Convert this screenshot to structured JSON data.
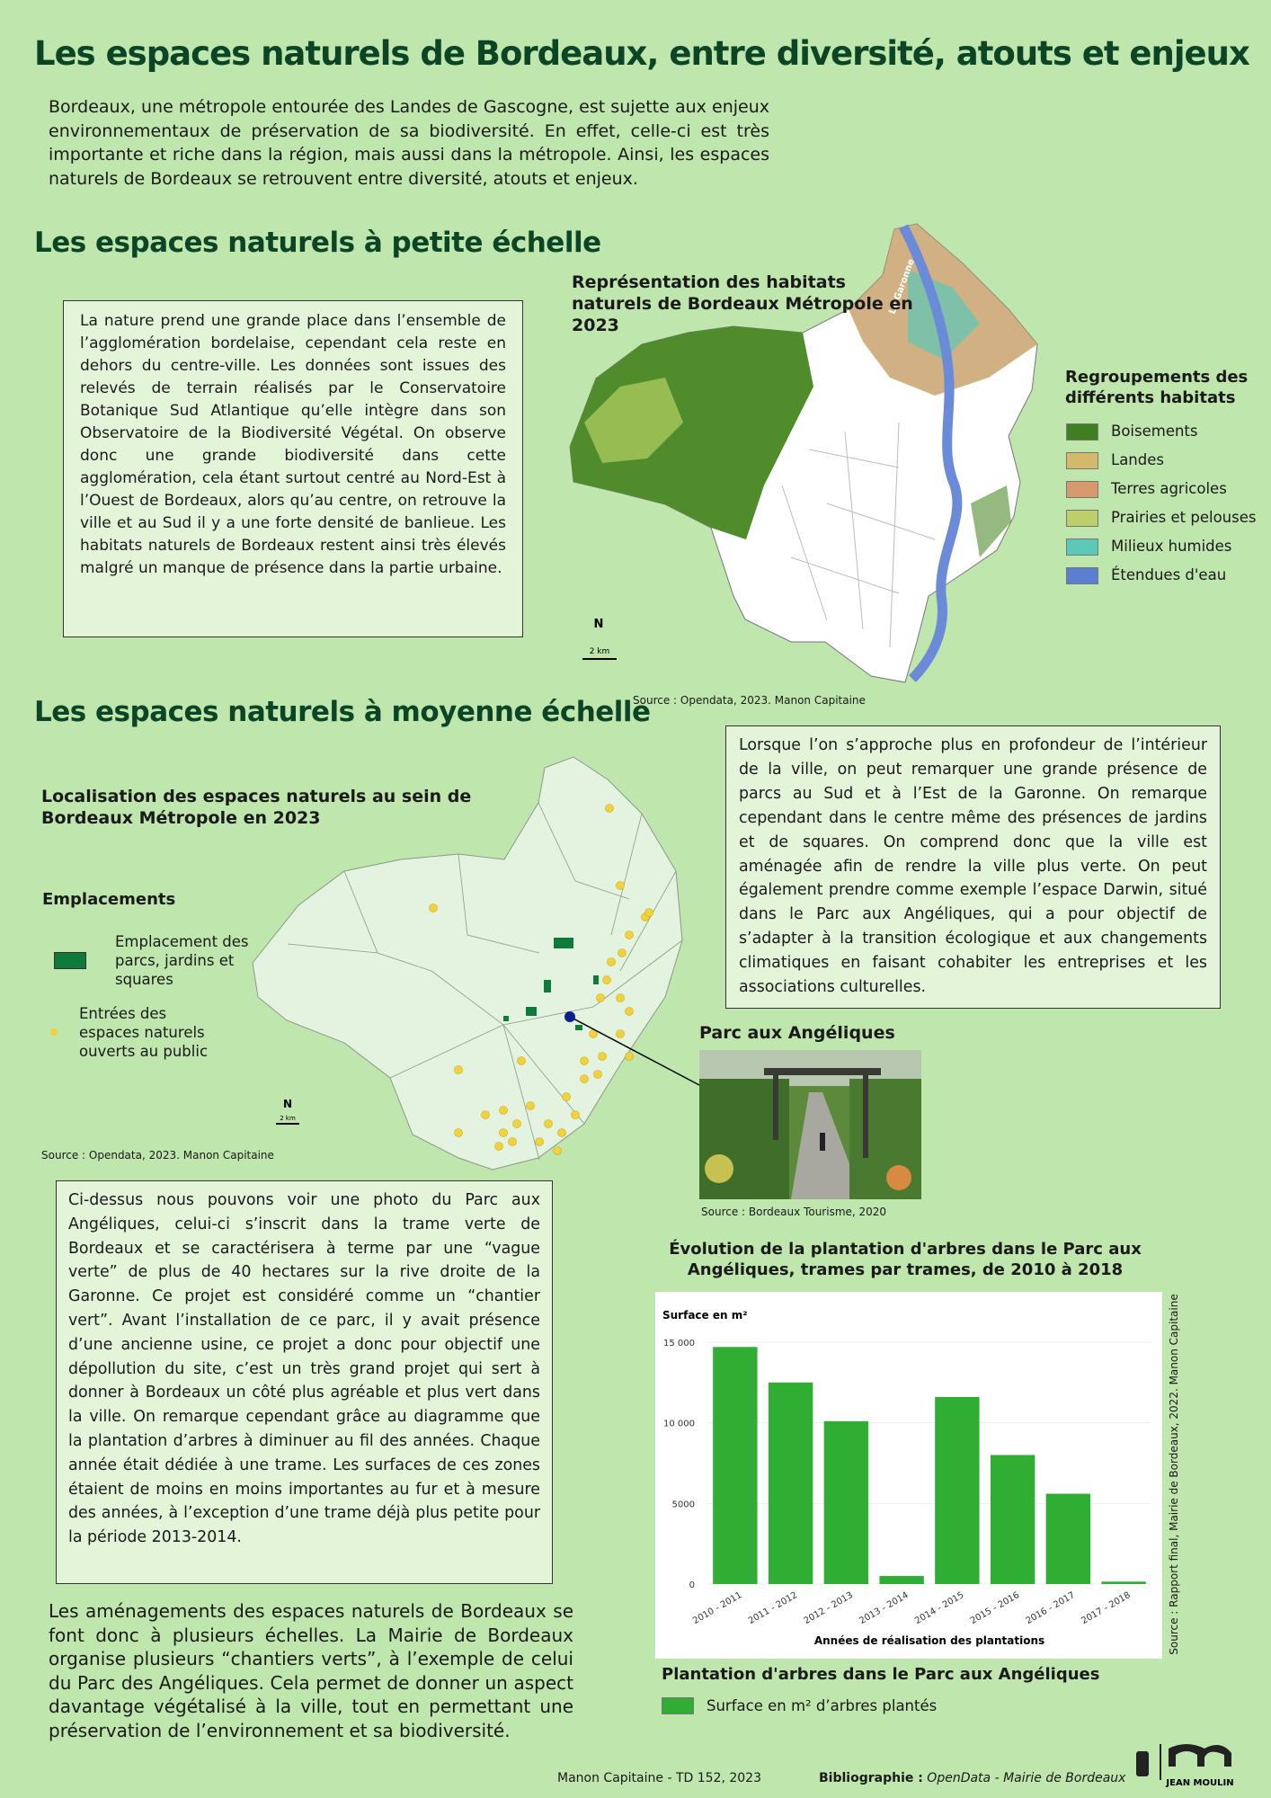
{
  "header": {
    "title": "Les espaces naturels de Bordeaux, entre diversité, atouts et enjeux",
    "intro": "Bordeaux, une métropole entourée des Landes de Gascogne, est sujette aux enjeux environnementaux de préservation de sa biodiversité. En effet, celle-ci est très importante et riche dans la région, mais aussi dans la métropole. Ainsi, les espaces naturels de Bordeaux se retrouvent entre diversité, atouts et enjeux."
  },
  "section1": {
    "heading": "Les espaces naturels à petite échelle",
    "text": "La nature prend une grande place dans l’ensemble de l’agglomération bordelaise, cependant cela reste en dehors du centre-ville. Les données sont issues des relevés de terrain réalisés par le Conservatoire Botanique Sud Atlantique qu’elle intègre dans son Observatoire de la Biodiversité Végétal. On observe donc une grande biodiversité dans cette agglomération, cela étant surtout centré au Nord-Est à l’Ouest de Bordeaux, alors qu’au centre, on retrouve la ville et au Sud il y a une forte densité de banlieue. Les habitats naturels de Bordeaux restent ainsi très élevés malgré un manque de présence dans la partie urbaine.",
    "map_title": "Représentation des habitats naturels de Bordeaux Métropole en 2023",
    "river_label": "La Garonne",
    "north": "N",
    "scale": "2 km",
    "legend_title": "Regroupements des différents habitats",
    "legend": [
      {
        "label": "Boisements",
        "color": "#3f7f22"
      },
      {
        "label": "Landes",
        "color": "#d3b96a"
      },
      {
        "label": "Terres agricoles",
        "color": "#d69a6c"
      },
      {
        "label": "Prairies et pelouses",
        "color": "#bccf6a"
      },
      {
        "label": "Milieux humides",
        "color": "#5cc8b8"
      },
      {
        "label": "Étendues d'eau",
        "color": "#5b7fd0"
      }
    ],
    "source": "Source : Opendata, 2023. Manon Capitaine"
  },
  "section2": {
    "heading": "Les espaces naturels à moyenne échelle",
    "map_title": "Localisation des espaces naturels au sein de Bordeaux Métropole en 2023",
    "legend_title": "Emplacements",
    "legend": [
      {
        "label": "Emplacement des parcs, jardins et squares",
        "color": "#0f7a3a"
      },
      {
        "label": "Entrées des espaces naturels ouverts au public",
        "color": "#f2d23a"
      }
    ],
    "north": "N",
    "scale": "2 km",
    "source": "Source : Opendata, 2023. Manon Capitaine",
    "text": "Lorsque l’on s’approche plus en profondeur de l’intérieur de la ville, on peut remarquer une grande présence de parcs au Sud et à l’Est de la Garonne. On remarque cependant dans le centre même des présences de jardins et de squares. On comprend donc que la ville est aménagée afin de rendre la ville plus verte. On peut également prendre comme exemple l’espace Darwin, situé dans le Parc aux Angéliques, qui a pour objectif de s’adapter à la transition écologique et aux changements climatiques en faisant cohabiter les entreprises et les associations culturelles.",
    "photo_title": "Parc aux Angéliques",
    "photo_source": "Source : Bordeaux Tourisme, 2020",
    "text2": "Ci-dessus nous pouvons voir une photo du Parc aux Angéliques, celui-ci s’inscrit dans la trame verte de Bordeaux et se caractérisera à terme par une “vague verte” de plus de 40 hectares sur la rive droite de la Garonne. Ce projet est considéré comme un “chantier vert”. Avant l’installation de ce parc, il y avait présence d’une ancienne usine, ce projet a donc pour objectif une dépollution du site, c’est un très grand projet qui sert à donner à Bordeaux un côté plus agréable et plus vert dans la ville. On remarque cependant grâce au diagramme que la plantation d’arbres à diminuer au fil des années. Chaque année était dédiée à une trame. Les surfaces de ces zones étaient de moins en moins importantes au fur et à mesure des années, à l’exception d’une trame déjà plus petite pour la période 2013-2014.",
    "conclusion": "Les aménagements des espaces naturels de Bordeaux se font donc à plusieurs échelles. La Mairie de Bordeaux organise plusieurs “chantiers verts”, à l’exemple de celui du Parc des Angéliques. Cela permet de donner un aspect davantage végétalisé à la ville, tout en permettant une préservation de l’environnement et sa biodiversité."
  },
  "chart_data": {
    "type": "bar",
    "title": "Évolution de la plantation d'arbres dans le Parc aux Angéliques, trames par trames, de 2010 à 2018",
    "y_label": "Surface en m²",
    "x_label": "Années de réalisation des plantations",
    "categories": [
      "2010 - 2011",
      "2011 - 2012",
      "2012 - 2013",
      "2013 - 2014",
      "2014 - 2015",
      "2015 - 2016",
      "2016 - 2017",
      "2017 - 2018"
    ],
    "series": [
      {
        "name": "Surface en m² d’arbres plantés",
        "color": "#2fae33",
        "values": [
          14700,
          12500,
          10100,
          500,
          11600,
          8000,
          5600,
          150
        ]
      }
    ],
    "ylim": [
      0,
      16000
    ],
    "yticks": [
      0,
      5000,
      {
        "value": 10000,
        "label": "10 000"
      },
      {
        "value": 15000,
        "label": "15 000"
      }
    ],
    "grid": true,
    "legend_title": "Plantation d'arbres dans le Parc aux Angéliques",
    "source": "Source : Rapport final, Mairie de Bordeaux, 2022. Manon Capitaine"
  },
  "footer": {
    "author": "Manon Capitaine - TD 152, 2023",
    "biblio_label": "Bibliographie :",
    "biblio": "OpenData - Mairie de Bordeaux",
    "university": "JEAN MOULIN"
  }
}
